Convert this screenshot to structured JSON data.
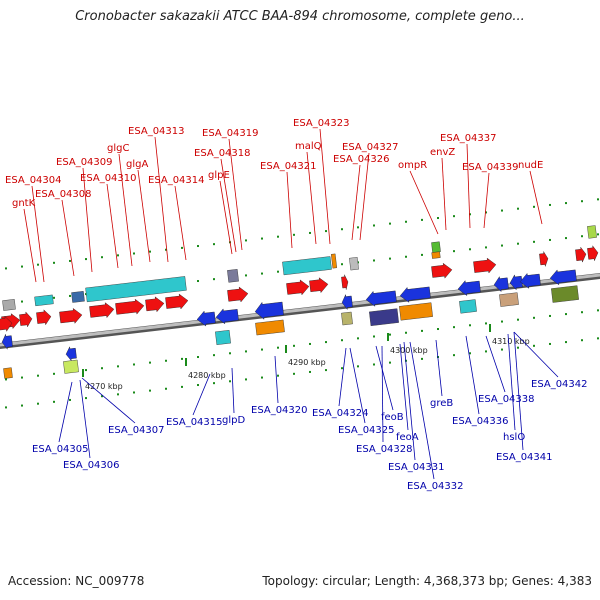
{
  "title": "Cronobacter sakazakii ATCC BAA-894 chromosome, complete geno...",
  "footer": {
    "accession": "Accession: NC_009778",
    "summary": "Topology: circular; Length: 4,368,373 bp; Genes: 4,383"
  },
  "scale_labels": [
    "4270 kbp",
    "4280 kbp",
    "4290 kbp",
    "4300 kbp",
    "4310 kbp"
  ],
  "top_labels": [
    "gntK",
    "ESA_04304",
    "ESA_04308",
    "ESA_04309",
    "ESA_04310",
    "glgC",
    "glgA",
    "ESA_04313",
    "ESA_04314",
    "glpE",
    "ESA_04318",
    "ESA_04319",
    "ESA_04321",
    "malQ",
    "ESA_04323",
    "ESA_04326",
    "ESA_04327",
    "ompR",
    "envZ",
    "ESA_04337",
    "ESA_04339",
    "nudE"
  ],
  "bottom_labels": [
    "ESA_04305",
    "ESA_04306",
    "ESA_04307",
    "ESA_04315",
    "glpD",
    "ESA_04320",
    "ESA_04324",
    "ESA_04325",
    "feoB",
    "ESA_04328",
    "feoA",
    "ESA_04331",
    "ESA_04332",
    "greB",
    "ESA_04336",
    "ESA_04338",
    "hslO",
    "ESA_04341",
    "ESA_04342"
  ],
  "colors": {
    "top_label": "#cc0000",
    "bottom_label": "#0000aa",
    "forward_gene": "#ee1111",
    "reverse_gene": "#1a33dd",
    "cyan_feature": "#2fc6cc",
    "orange_feature": "#f08a00",
    "navy_feature": "#3a3a8a",
    "olive_feature": "#6b8a2a",
    "backbone": "#8a8a8a",
    "tick": "#1a8a1a"
  }
}
